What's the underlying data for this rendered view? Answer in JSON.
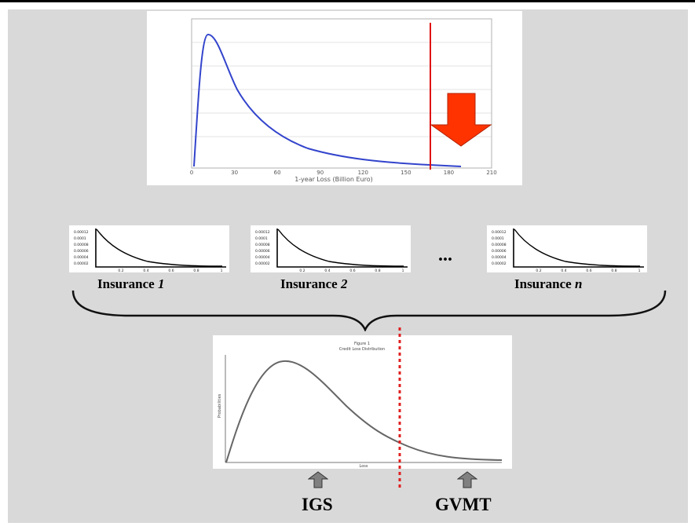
{
  "top_chart": {
    "xlabel": "1-year Loss (Billion Euro)",
    "xticks": [
      "0",
      "30",
      "60",
      "90",
      "120",
      "150",
      "180",
      "210"
    ],
    "line_color": "#3344cc",
    "threshold_color": "#e01010",
    "arrow_color": "#ff3300"
  },
  "insurances": [
    {
      "name": "Insurance ",
      "index": "1"
    },
    {
      "name": "Insurance ",
      "index": "2"
    },
    {
      "name": "Insurance ",
      "index": "n"
    }
  ],
  "small_chart_yticks": [
    "0.00012",
    "0.0001",
    "0.00008",
    "0.00006",
    "0.00004",
    "0.00002"
  ],
  "small_chart_xticks": [
    "0.2",
    "0.4",
    "0.6",
    "0.8",
    "1"
  ],
  "ellipsis": "...",
  "bottom_chart": {
    "title_line1": "Figure 1",
    "title_line2": "Credit Loss Distribution",
    "ylabel": "Probabilities",
    "xlabel": "Loss",
    "threshold_color": "#e02020"
  },
  "labels": {
    "left": "IGS",
    "right": "GVMT"
  },
  "colors": {
    "background_panel": "#d9d9d9",
    "arrow_gray": "#808080"
  }
}
